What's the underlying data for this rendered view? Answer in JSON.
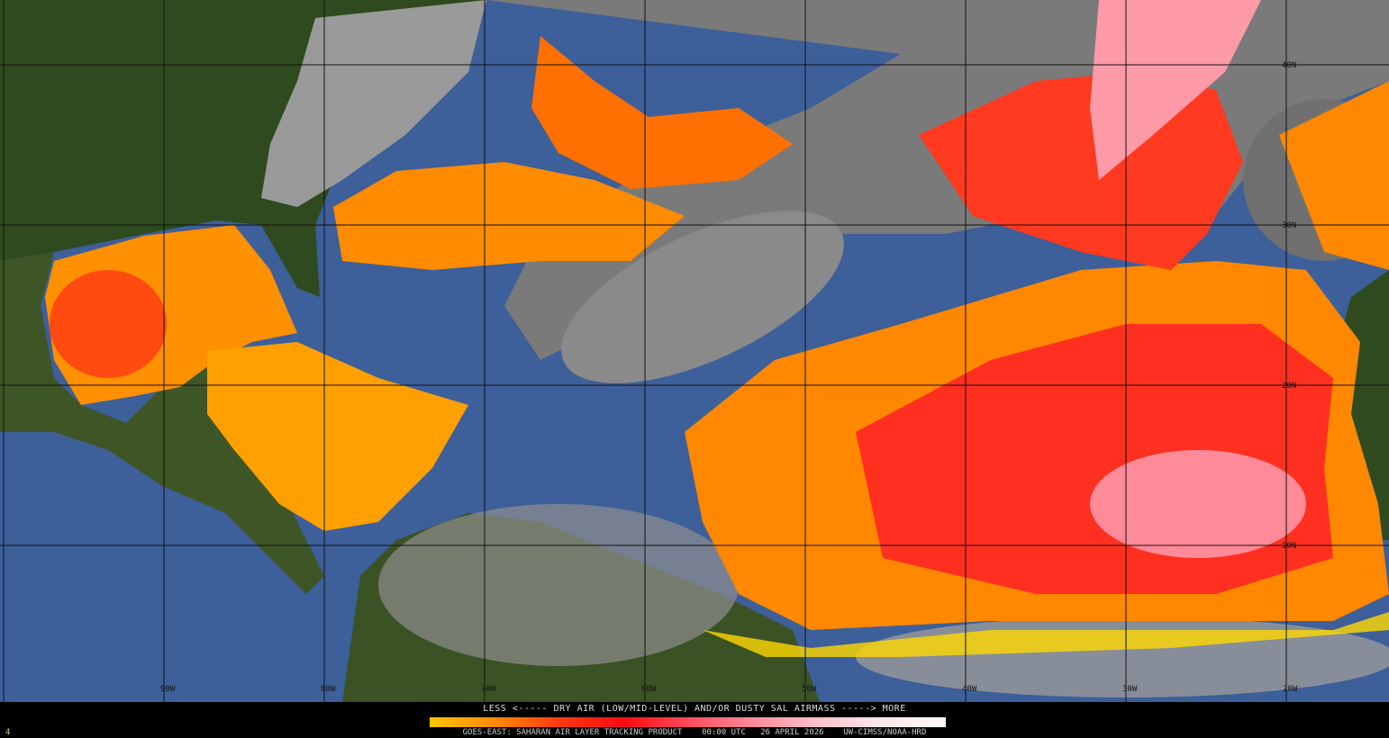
{
  "product": {
    "legend_title": "LESS <----- DRY AIR (LOW/MID-LEVEL) AND/OR DUSTY SAL AIRMASS -----> MORE",
    "footer": "GOES-EAST: SAHARAN AIR LAYER TRACKING PRODUCT    00:00 UTC   26 APRIL 2026    UW-CIMSS/NOAA-HRD",
    "frame_number": "4",
    "legend_colors": [
      "#ffc400",
      "#ff8a00",
      "#ff3a10",
      "#ff0a10",
      "#ff8a98",
      "#fff6f6"
    ]
  },
  "map": {
    "latitude_labels": [
      "40N",
      "30N",
      "20N",
      "10N"
    ],
    "longitude_labels": [
      "90W",
      "80W",
      "70W",
      "60W",
      "50W",
      "40W",
      "30W",
      "20W"
    ],
    "colors": {
      "ocean": "#3d5f9a",
      "land": "#2f4a1e",
      "cloud": "#8c8c8c",
      "sal_low": "#ffd000",
      "sal_mid": "#ff7a00",
      "sal_high": "#ff2020",
      "sal_max": "#ff9aa8"
    }
  }
}
